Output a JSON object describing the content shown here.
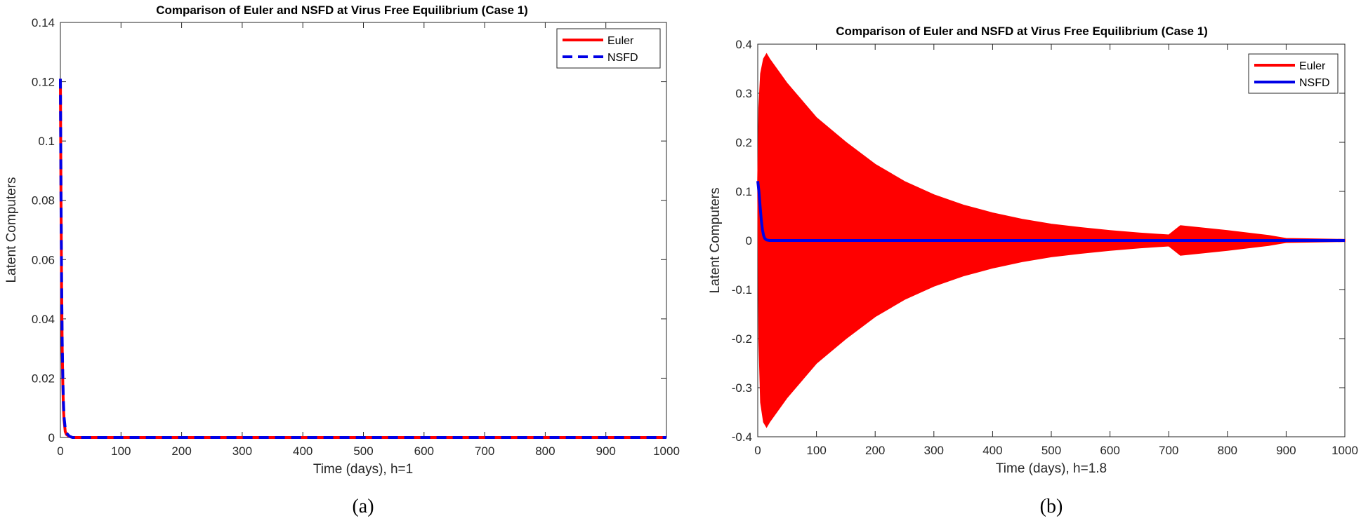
{
  "chart_data": [
    {
      "type": "line",
      "panel_label": "(a)",
      "title": "Comparison of Euler and NSFD at Virus Free Equilibrium (Case 1)",
      "xlabel": "Time (days), h=1",
      "ylabel": "Latent Computers",
      "xlim": [
        0,
        1000
      ],
      "ylim": [
        0,
        0.14
      ],
      "xticks": [
        0,
        100,
        200,
        300,
        400,
        500,
        600,
        700,
        800,
        900,
        1000
      ],
      "yticks": [
        0,
        0.02,
        0.04,
        0.06,
        0.08,
        0.1,
        0.12,
        0.14
      ],
      "xtick_labels": [
        "0",
        "100",
        "200",
        "300",
        "400",
        "500",
        "600",
        "700",
        "800",
        "900",
        "1000"
      ],
      "ytick_labels": [
        "0",
        "0.02",
        "0.04",
        "0.06",
        "0.08",
        "0.1",
        "0.12",
        "0.14"
      ],
      "grid": false,
      "legend_position": "top-right",
      "series": [
        {
          "name": "Euler",
          "color": "#ff0000",
          "style": "solid",
          "x": [
            0,
            1,
            2,
            3,
            4,
            5,
            6,
            8,
            10,
            15,
            20,
            50,
            100,
            1000
          ],
          "y": [
            0.121,
            0.08,
            0.05,
            0.03,
            0.018,
            0.01,
            0.006,
            0.002,
            0.001,
            0.0003,
            0,
            0,
            0,
            0
          ]
        },
        {
          "name": "NSFD",
          "color": "#0000e6",
          "style": "dashed",
          "x": [
            0,
            1,
            2,
            3,
            4,
            5,
            6,
            8,
            10,
            15,
            20,
            50,
            100,
            1000
          ],
          "y": [
            0.121,
            0.082,
            0.052,
            0.032,
            0.02,
            0.012,
            0.007,
            0.003,
            0.0015,
            0.0004,
            0,
            0,
            0,
            0
          ]
        }
      ]
    },
    {
      "type": "line",
      "panel_label": "(b)",
      "title": "Comparison of Euler and NSFD at Virus Free Equilibrium (Case 1)",
      "xlabel": "Time (days), h=1.8",
      "ylabel": "Latent Computers",
      "xlim": [
        0,
        1000
      ],
      "ylim": [
        -0.4,
        0.4
      ],
      "xticks": [
        0,
        100,
        200,
        300,
        400,
        500,
        600,
        700,
        800,
        900,
        1000
      ],
      "yticks": [
        -0.4,
        -0.3,
        -0.2,
        -0.1,
        0,
        0.1,
        0.2,
        0.3,
        0.4
      ],
      "xtick_labels": [
        "0",
        "100",
        "200",
        "300",
        "400",
        "500",
        "600",
        "700",
        "800",
        "900",
        "1000"
      ],
      "ytick_labels": [
        "-0.4",
        "-0.3",
        "-0.2",
        "-0.1",
        "0",
        "0.1",
        "0.2",
        "0.3",
        "0.4"
      ],
      "grid": false,
      "legend_position": "top-right",
      "series": [
        {
          "name": "Euler",
          "color": "#ff0000",
          "style": "solid",
          "note_shape": "rapid oscillation envelope",
          "upper_envelope": {
            "x": [
              0,
              2,
              5,
              10,
              15,
              20,
              50,
              100,
              150,
              200,
              250,
              300,
              350,
              400,
              450,
              500,
              550,
              600,
              650,
              700,
              720,
              800,
              870,
              900,
              1000
            ],
            "y": [
              0.12,
              0.27,
              0.34,
              0.37,
              0.38,
              0.37,
              0.32,
              0.25,
              0.2,
              0.155,
              0.12,
              0.093,
              0.072,
              0.056,
              0.043,
              0.033,
              0.026,
              0.02,
              0.015,
              0.011,
              0.03,
              0.02,
              0.01,
              0.004,
              0.002
            ]
          },
          "lower_envelope": {
            "x": [
              0,
              2,
              5,
              10,
              15,
              20,
              50,
              100,
              150,
              200,
              250,
              300,
              350,
              400,
              450,
              500,
              550,
              600,
              650,
              700,
              720,
              800,
              870,
              900,
              1000
            ],
            "y": [
              0.12,
              -0.2,
              -0.33,
              -0.37,
              -0.38,
              -0.37,
              -0.32,
              -0.25,
              -0.2,
              -0.155,
              -0.12,
              -0.093,
              -0.072,
              -0.056,
              -0.043,
              -0.033,
              -0.026,
              -0.02,
              -0.015,
              -0.011,
              -0.03,
              -0.02,
              -0.01,
              -0.004,
              -0.002
            ]
          }
        },
        {
          "name": "NSFD",
          "color": "#0000e6",
          "style": "solid",
          "x": [
            0,
            2,
            4,
            6,
            8,
            10,
            12,
            15,
            20,
            50,
            1000
          ],
          "y": [
            0.121,
            0.1,
            0.07,
            0.042,
            0.022,
            0.01,
            0.004,
            0.001,
            0,
            0,
            0
          ]
        }
      ]
    }
  ]
}
